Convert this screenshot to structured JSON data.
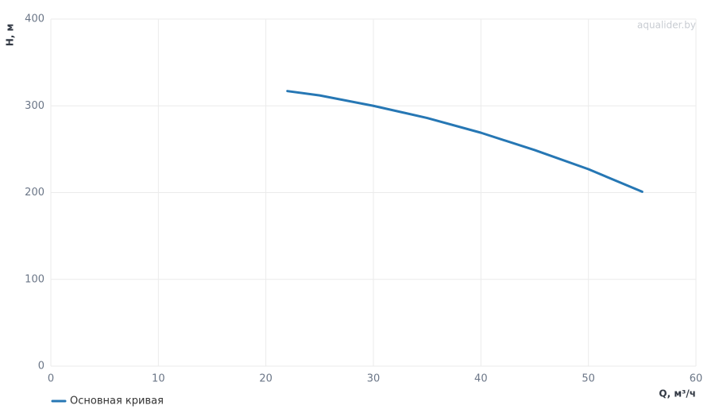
{
  "chart_data": {
    "type": "line",
    "watermark": "aqualider.by",
    "y_label": "H, м",
    "x_label": "Q, м³/ч",
    "x": [
      22,
      25,
      30,
      35,
      40,
      45,
      50,
      55
    ],
    "series": [
      {
        "name": "Основная кривая",
        "color": "#2677b4",
        "values": [
          317,
          312,
          300,
          286,
          269,
          249,
          227,
          201
        ]
      }
    ],
    "xlim": [
      0,
      60
    ],
    "xticks": [
      0,
      10,
      20,
      30,
      40,
      50,
      60
    ],
    "ylim": [
      0,
      400
    ],
    "yticks": [
      0,
      100,
      200,
      300,
      400
    ],
    "grid": true,
    "legend": "bottom-left"
  }
}
